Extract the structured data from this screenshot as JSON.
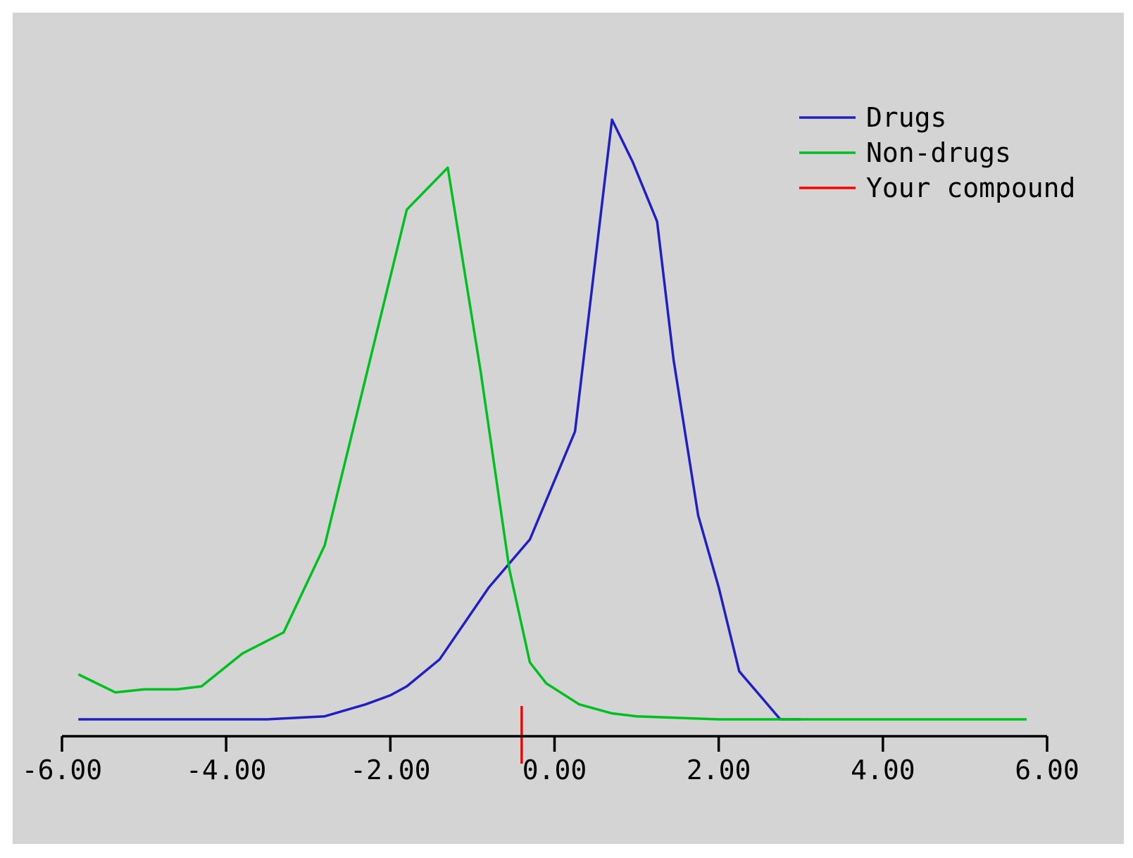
{
  "chart_data": {
    "type": "line",
    "title": "",
    "xlabel": "",
    "ylabel": "",
    "xlim": [
      -6,
      6
    ],
    "ylim": [
      0,
      1
    ],
    "x_ticks": [
      -6,
      -4,
      -2,
      0,
      2,
      4,
      6
    ],
    "x_tick_labels": [
      "-6.00",
      "-4.00",
      "-2.00",
      "0.00",
      "2.00",
      "4.00",
      "6.00"
    ],
    "grid": false,
    "legend_position": "top-right",
    "series": [
      {
        "name": "Drugs",
        "color": "#2020c0",
        "points": [
          [
            -5.8,
            0.0
          ],
          [
            -3.5,
            0.0
          ],
          [
            -2.8,
            0.005
          ],
          [
            -2.3,
            0.025
          ],
          [
            -2.0,
            0.04
          ],
          [
            -1.8,
            0.055
          ],
          [
            -1.4,
            0.1
          ],
          [
            -1.2,
            0.14
          ],
          [
            -0.8,
            0.22
          ],
          [
            -0.3,
            0.3
          ],
          [
            0.25,
            0.48
          ],
          [
            0.7,
            1.0
          ],
          [
            0.95,
            0.93
          ],
          [
            1.25,
            0.83
          ],
          [
            1.45,
            0.6
          ],
          [
            1.75,
            0.34
          ],
          [
            2.0,
            0.22
          ],
          [
            2.25,
            0.08
          ],
          [
            2.5,
            0.04
          ],
          [
            2.75,
            0.0
          ],
          [
            3.0,
            0.0
          ]
        ]
      },
      {
        "name": "Non-drugs",
        "color": "#00c020",
        "points": [
          [
            -5.8,
            0.075
          ],
          [
            -5.35,
            0.045
          ],
          [
            -5.0,
            0.05
          ],
          [
            -4.6,
            0.05
          ],
          [
            -4.3,
            0.055
          ],
          [
            -3.8,
            0.11
          ],
          [
            -3.3,
            0.145
          ],
          [
            -2.8,
            0.29
          ],
          [
            -2.3,
            0.57
          ],
          [
            -1.8,
            0.85
          ],
          [
            -1.3,
            0.92
          ],
          [
            -0.9,
            0.58
          ],
          [
            -0.55,
            0.25
          ],
          [
            -0.3,
            0.095
          ],
          [
            -0.1,
            0.06
          ],
          [
            0.3,
            0.025
          ],
          [
            0.7,
            0.01
          ],
          [
            1.0,
            0.005
          ],
          [
            2.0,
            0.0
          ],
          [
            5.75,
            0.0
          ]
        ]
      }
    ],
    "marker": {
      "name": "Your compound",
      "color": "#ff0000",
      "x": -0.4
    }
  }
}
